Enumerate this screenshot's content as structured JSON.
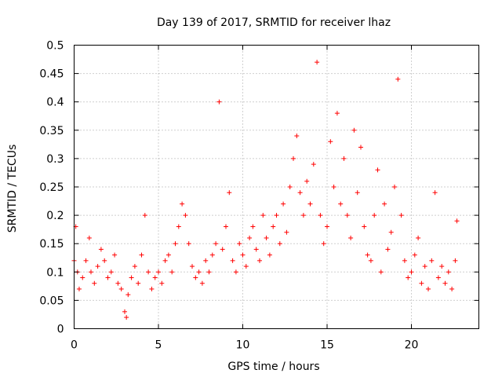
{
  "chart_data": {
    "type": "scatter",
    "title": "Day 139 of 2017, SRMTID for receiver lhaz",
    "xlabel": "GPS time / hours",
    "ylabel": "SRMTID / TECUs",
    "xlim": [
      0,
      24
    ],
    "ylim": [
      0,
      0.5
    ],
    "xticks": [
      0,
      5,
      10,
      15,
      20
    ],
    "xtick_labels": [
      "0",
      "5",
      "10",
      "15",
      "20"
    ],
    "yticks": [
      0,
      0.05,
      0.1,
      0.15,
      0.2,
      0.25,
      0.3,
      0.35,
      0.4,
      0.45,
      0.5
    ],
    "ytick_labels": [
      "0",
      "0.05",
      "0.1",
      "0.15",
      "0.2",
      "0.25",
      "0.3",
      "0.35",
      "0.4",
      "0.45",
      "0.5"
    ],
    "grid": true,
    "marker": "+",
    "color": "#ff0000",
    "series": [
      {
        "name": "SRMTID",
        "x": [
          0.0,
          0.1,
          0.2,
          0.3,
          0.5,
          0.7,
          0.9,
          1.0,
          1.2,
          1.4,
          1.6,
          1.8,
          2.0,
          2.2,
          2.4,
          2.6,
          2.8,
          3.0,
          3.1,
          3.2,
          3.4,
          3.6,
          3.8,
          4.0,
          4.2,
          4.4,
          4.6,
          4.8,
          5.0,
          5.2,
          5.4,
          5.6,
          5.8,
          6.0,
          6.2,
          6.4,
          6.6,
          6.8,
          7.0,
          7.2,
          7.4,
          7.6,
          7.8,
          8.0,
          8.2,
          8.4,
          8.6,
          8.8,
          9.0,
          9.2,
          9.4,
          9.6,
          9.8,
          10.0,
          10.2,
          10.4,
          10.6,
          10.8,
          11.0,
          11.2,
          11.4,
          11.6,
          11.8,
          12.0,
          12.2,
          12.4,
          12.6,
          12.8,
          13.0,
          13.2,
          13.4,
          13.6,
          13.8,
          14.0,
          14.2,
          14.4,
          14.6,
          14.8,
          15.0,
          15.2,
          15.4,
          15.6,
          15.8,
          16.0,
          16.2,
          16.4,
          16.6,
          16.8,
          17.0,
          17.2,
          17.4,
          17.6,
          17.8,
          18.0,
          18.2,
          18.4,
          18.6,
          18.8,
          19.0,
          19.2,
          19.4,
          19.6,
          19.8,
          20.0,
          20.2,
          20.4,
          20.6,
          20.8,
          21.0,
          21.2,
          21.4,
          21.6,
          21.8,
          22.0,
          22.2,
          22.4,
          22.6,
          22.7
        ],
        "y": [
          0.12,
          0.18,
          0.1,
          0.07,
          0.09,
          0.12,
          0.16,
          0.1,
          0.08,
          0.11,
          0.14,
          0.12,
          0.09,
          0.1,
          0.13,
          0.08,
          0.07,
          0.03,
          0.02,
          0.06,
          0.09,
          0.11,
          0.08,
          0.13,
          0.2,
          0.1,
          0.07,
          0.09,
          0.1,
          0.08,
          0.12,
          0.13,
          0.1,
          0.15,
          0.18,
          0.22,
          0.2,
          0.15,
          0.11,
          0.09,
          0.1,
          0.08,
          0.12,
          0.1,
          0.13,
          0.15,
          0.4,
          0.14,
          0.18,
          0.24,
          0.12,
          0.1,
          0.15,
          0.13,
          0.11,
          0.16,
          0.18,
          0.14,
          0.12,
          0.2,
          0.16,
          0.13,
          0.18,
          0.2,
          0.15,
          0.22,
          0.17,
          0.25,
          0.3,
          0.34,
          0.24,
          0.2,
          0.26,
          0.22,
          0.29,
          0.47,
          0.2,
          0.15,
          0.18,
          0.33,
          0.25,
          0.38,
          0.22,
          0.3,
          0.2,
          0.16,
          0.35,
          0.24,
          0.32,
          0.18,
          0.13,
          0.12,
          0.2,
          0.28,
          0.1,
          0.22,
          0.14,
          0.17,
          0.25,
          0.44,
          0.2,
          0.12,
          0.09,
          0.1,
          0.13,
          0.16,
          0.08,
          0.11,
          0.07,
          0.12,
          0.24,
          0.09,
          0.11,
          0.08,
          0.1,
          0.07,
          0.12,
          0.19
        ]
      }
    ]
  }
}
